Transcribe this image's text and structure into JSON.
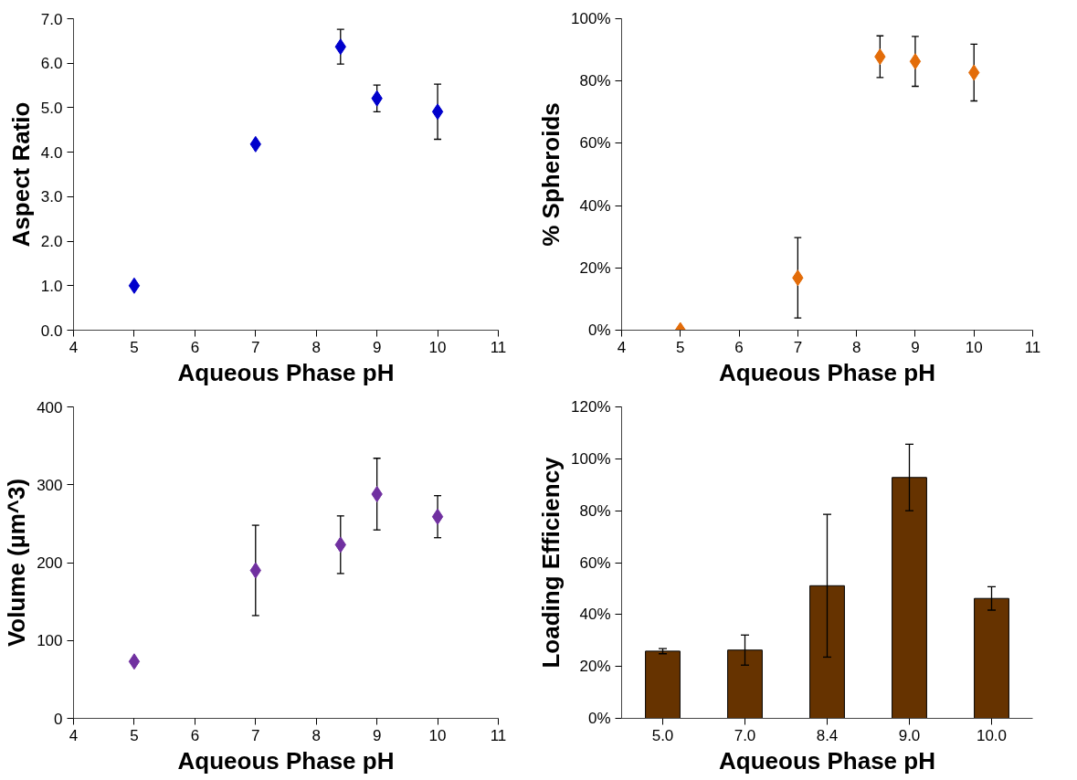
{
  "chart_data": [
    {
      "type": "scatter",
      "xlabel": "Aqueous Phase pH",
      "ylabel": "Aspect Ratio",
      "marker": "diamond",
      "x": [
        5,
        7,
        8.4,
        9,
        10
      ],
      "series": [
        {
          "color": "#0000cc",
          "values": [
            1.0,
            4.18,
            6.37,
            5.21,
            4.91
          ],
          "errors": [
            null,
            null,
            0.39,
            0.3,
            0.62
          ]
        }
      ],
      "xlim": [
        4,
        11
      ],
      "xticks": [
        4,
        5,
        6,
        7,
        8,
        9,
        10,
        11
      ],
      "ylim": [
        0,
        7
      ],
      "yticks": [
        {
          "value": 0,
          "label": "0.0"
        },
        {
          "value": 1,
          "label": "1.0"
        },
        {
          "value": 2,
          "label": "2.0"
        },
        {
          "value": 3,
          "label": "3.0"
        },
        {
          "value": 4,
          "label": "4.0"
        },
        {
          "value": 5,
          "label": "5.0"
        },
        {
          "value": 6,
          "label": "6.0"
        },
        {
          "value": 7,
          "label": "7.0"
        }
      ]
    },
    {
      "type": "scatter",
      "xlabel": "Aqueous Phase pH",
      "ylabel": "% Spheroids",
      "marker": "diamond",
      "x": [
        5,
        7,
        8.4,
        9,
        10
      ],
      "series": [
        {
          "color": "#e36c09",
          "values": [
            0,
            16.8,
            87.8,
            86.3,
            82.7
          ],
          "errors": [
            null,
            12.9,
            6.7,
            8,
            9.1
          ]
        }
      ],
      "xlim": [
        4,
        11
      ],
      "xticks": [
        4,
        5,
        6,
        7,
        8,
        9,
        10,
        11
      ],
      "ylim": [
        0,
        100
      ],
      "yticks": [
        {
          "value": 0,
          "label": "0%"
        },
        {
          "value": 20,
          "label": "20%"
        },
        {
          "value": 40,
          "label": "40%"
        },
        {
          "value": 60,
          "label": "60%"
        },
        {
          "value": 80,
          "label": "80%"
        },
        {
          "value": 100,
          "label": "100%"
        }
      ]
    },
    {
      "type": "scatter",
      "xlabel": "Aqueous Phase pH",
      "ylabel": "Volume (µm^3)",
      "marker": "diamond",
      "x": [
        5,
        7,
        8.4,
        9,
        10
      ],
      "series": [
        {
          "color": "#7030a0",
          "values": [
            73,
            190,
            223,
            288,
            259
          ],
          "errors": [
            null,
            58,
            37,
            46,
            27
          ]
        }
      ],
      "xlim": [
        4,
        11
      ],
      "xticks": [
        4,
        5,
        6,
        7,
        8,
        9,
        10,
        11
      ],
      "ylim": [
        0,
        400
      ],
      "yticks": [
        0,
        100,
        200,
        300,
        400
      ]
    },
    {
      "type": "bar",
      "xlabel": "Aqueous Phase pH",
      "ylabel": "Loading Efficiency",
      "categories": [
        "5.0",
        "7.0",
        "8.4",
        "9.0",
        "10.0"
      ],
      "series": [
        {
          "color": "#663300",
          "values": [
            25.9,
            26.3,
            51.1,
            92.8,
            46.2
          ],
          "errors": [
            1,
            5.8,
            27.5,
            12.8,
            4.5
          ]
        }
      ],
      "ylim": [
        0,
        120
      ],
      "yticks": [
        {
          "value": 0,
          "label": "0%"
        },
        {
          "value": 20,
          "label": "20%"
        },
        {
          "value": 40,
          "label": "40%"
        },
        {
          "value": 60,
          "label": "60%"
        },
        {
          "value": 80,
          "label": "80%"
        },
        {
          "value": 100,
          "label": "100%"
        },
        {
          "value": 120,
          "label": "120%"
        }
      ]
    }
  ]
}
